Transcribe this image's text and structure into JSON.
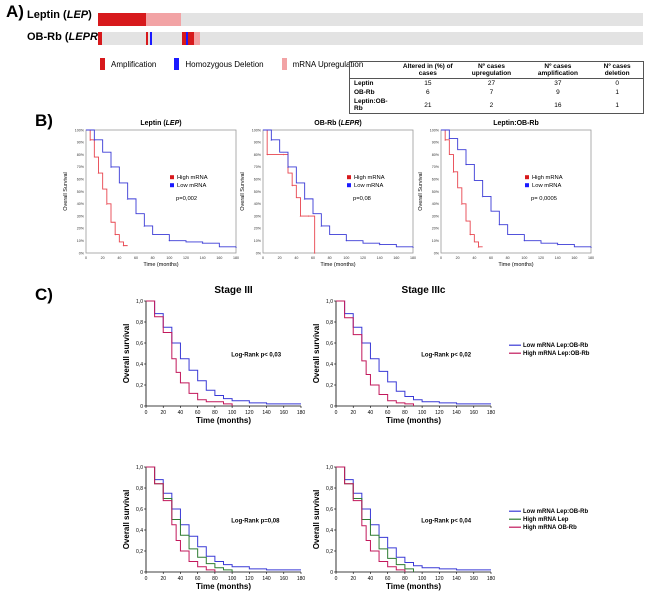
{
  "panel_labels": {
    "a": "A)",
    "b": "B)",
    "c": "C)"
  },
  "oncoprint": {
    "rows": [
      {
        "label_prefix": "Leptin (",
        "label_gene": "LEP",
        "label_suffix": ")"
      },
      {
        "label_prefix": "OB-Rb (",
        "label_gene": "LEPR",
        "label_suffix": ")"
      }
    ],
    "legend": [
      {
        "label": "Amplification",
        "color": "#d7191c"
      },
      {
        "label": "Homozygous Deletion",
        "color": "#1a1aff"
      },
      {
        "label": "mRNA Upregulation",
        "color": "#f2a3a5"
      }
    ],
    "table": {
      "headers": [
        "",
        "Altered in (%) of cases",
        "Nº cases upregulation",
        "Nº cases amplification",
        "Nº cases deletion"
      ],
      "rows": [
        [
          "Leptin",
          "15",
          "27",
          "37",
          "0"
        ],
        [
          "OB-Rb",
          "6",
          "7",
          "9",
          "1"
        ],
        [
          "Leptin:OB-Rb",
          "21",
          "2",
          "16",
          "1"
        ]
      ]
    }
  },
  "chart_data": [
    {
      "type": "line",
      "panel": "B",
      "title": "Leptin (LEP)",
      "xlabel": "Time (months)",
      "ylabel": "Overall Survival",
      "xlim": [
        0,
        180
      ],
      "ylim": [
        0,
        100
      ],
      "x_ticks": [
        0,
        20,
        40,
        60,
        80,
        100,
        120,
        140,
        160,
        180
      ],
      "y_ticks": [
        0,
        10,
        20,
        30,
        40,
        50,
        60,
        70,
        80,
        90,
        100
      ],
      "y_tick_labels": [
        "0%",
        "10%",
        "20%",
        "30%",
        "40%",
        "50%",
        "60%",
        "70%",
        "80%",
        "90%",
        "100%"
      ],
      "legend_position": "center-right",
      "annotation": "p=0,002",
      "series": [
        {
          "name": "High mRNA",
          "color": "#e8454f",
          "x": [
            0,
            5,
            10,
            15,
            20,
            25,
            30,
            35,
            40,
            45,
            50
          ],
          "y": [
            100,
            92,
            78,
            65,
            52,
            40,
            25,
            15,
            9,
            6,
            6
          ]
        },
        {
          "name": "Low mRNA",
          "color": "#3a3ad6",
          "x": [
            0,
            10,
            20,
            30,
            40,
            50,
            60,
            70,
            80,
            100,
            120,
            140,
            160,
            180
          ],
          "y": [
            100,
            92,
            82,
            70,
            57,
            44,
            32,
            22,
            15,
            10,
            9,
            8,
            5,
            5
          ]
        }
      ]
    },
    {
      "type": "line",
      "panel": "B",
      "title": "OB-Rb (LEPR)",
      "xlabel": "Time (months)",
      "ylabel": "Overall Survival",
      "xlim": [
        0,
        180
      ],
      "ylim": [
        0,
        100
      ],
      "x_ticks": [
        0,
        20,
        40,
        60,
        80,
        100,
        120,
        140,
        160,
        180
      ],
      "y_ticks": [
        0,
        10,
        20,
        30,
        40,
        50,
        60,
        70,
        80,
        90,
        100
      ],
      "y_tick_labels": [
        "0%",
        "10%",
        "20%",
        "30%",
        "40%",
        "50%",
        "60%",
        "70%",
        "80%",
        "90%",
        "100%"
      ],
      "legend_position": "center-right",
      "annotation": "p=0,08",
      "series": [
        {
          "name": "High mRNA",
          "color": "#e8454f",
          "x": [
            0,
            5,
            15,
            25,
            30,
            35,
            40,
            45,
            50,
            55,
            60,
            62
          ],
          "y": [
            100,
            80,
            80,
            80,
            65,
            55,
            45,
            30,
            30,
            30,
            30,
            0
          ]
        },
        {
          "name": "Low mRNA",
          "color": "#3a3ad6",
          "x": [
            0,
            10,
            20,
            30,
            40,
            50,
            60,
            70,
            80,
            100,
            120,
            140,
            160,
            180
          ],
          "y": [
            100,
            92,
            82,
            70,
            57,
            44,
            32,
            22,
            15,
            10,
            8,
            7,
            5,
            5
          ]
        }
      ]
    },
    {
      "type": "line",
      "panel": "B",
      "title": "Leptin:OB-Rb",
      "xlabel": "Time (months)",
      "ylabel": "Overall Survival",
      "xlim": [
        0,
        180
      ],
      "ylim": [
        0,
        100
      ],
      "x_ticks": [
        0,
        20,
        40,
        60,
        80,
        100,
        120,
        140,
        160,
        180
      ],
      "y_ticks": [
        0,
        10,
        20,
        30,
        40,
        50,
        60,
        70,
        80,
        90,
        100
      ],
      "y_tick_labels": [
        "0%",
        "10%",
        "20%",
        "30%",
        "40%",
        "50%",
        "60%",
        "70%",
        "80%",
        "90%",
        "100%"
      ],
      "legend_position": "center-right",
      "annotation": "p= 0,0005",
      "series": [
        {
          "name": "High mRNA",
          "color": "#e8454f",
          "x": [
            0,
            5,
            10,
            15,
            20,
            25,
            30,
            35,
            40,
            45,
            50
          ],
          "y": [
            100,
            92,
            80,
            66,
            53,
            40,
            26,
            15,
            9,
            5,
            5
          ]
        },
        {
          "name": "Low mRNA",
          "color": "#3a3ad6",
          "x": [
            0,
            10,
            20,
            30,
            40,
            50,
            60,
            70,
            80,
            100,
            120,
            140,
            160,
            180
          ],
          "y": [
            100,
            93,
            84,
            72,
            59,
            46,
            34,
            23,
            15,
            10,
            8,
            7,
            5,
            5
          ]
        }
      ]
    },
    {
      "type": "line",
      "panel": "C",
      "title": "Stage III",
      "xlabel": "Time (months)",
      "ylabel": "Overall survival",
      "xlim": [
        0,
        180
      ],
      "ylim": [
        0,
        1
      ],
      "x_ticks": [
        0,
        20,
        40,
        60,
        80,
        100,
        120,
        140,
        160,
        180
      ],
      "y_ticks": [
        0,
        0.2,
        0.4,
        0.6,
        0.8,
        1
      ],
      "y_tick_labels": [
        "0",
        "0,2",
        "0,4",
        "0,6",
        "0,8",
        "1,0"
      ],
      "annotation": "Log-Rank p< 0,03",
      "series": [
        {
          "name": "Low mRNA Lep:OB-Rb",
          "color": "#3a3ad6",
          "x": [
            0,
            10,
            20,
            30,
            40,
            50,
            60,
            70,
            80,
            90,
            100,
            120,
            140,
            160,
            180
          ],
          "y": [
            1.0,
            0.88,
            0.75,
            0.6,
            0.45,
            0.34,
            0.24,
            0.15,
            0.1,
            0.07,
            0.05,
            0.03,
            0.02,
            0.02,
            0.02
          ]
        },
        {
          "name": "High mRNA Lep:OB-Rb",
          "color": "#c2185b",
          "x": [
            0,
            10,
            20,
            30,
            35,
            40,
            50,
            60,
            70,
            80,
            90,
            100
          ],
          "y": [
            1.0,
            0.85,
            0.7,
            0.45,
            0.32,
            0.22,
            0.12,
            0.06,
            0.04,
            0.04,
            0.02,
            0.0
          ]
        }
      ]
    },
    {
      "type": "line",
      "panel": "C",
      "title": "Stage IIIc",
      "xlabel": "Time (months)",
      "ylabel": "Overall survival",
      "xlim": [
        0,
        180
      ],
      "ylim": [
        0,
        1
      ],
      "x_ticks": [
        0,
        20,
        40,
        60,
        80,
        100,
        120,
        140,
        160,
        180
      ],
      "y_ticks": [
        0,
        0.2,
        0.4,
        0.6,
        0.8,
        1
      ],
      "y_tick_labels": [
        "0",
        "0,2",
        "0,4",
        "0,6",
        "0,8",
        "1,0"
      ],
      "annotation": "Log-Rank p< 0,02",
      "legend_position": "right",
      "series": [
        {
          "name": "Low mRNA Lep:OB-Rb",
          "color": "#3a3ad6",
          "x": [
            0,
            10,
            20,
            30,
            40,
            50,
            60,
            70,
            80,
            90,
            100,
            120,
            140,
            160,
            180
          ],
          "y": [
            1.0,
            0.88,
            0.75,
            0.6,
            0.45,
            0.33,
            0.23,
            0.14,
            0.09,
            0.06,
            0.04,
            0.03,
            0.02,
            0.02,
            0.02
          ]
        },
        {
          "name": "High mRNA Lep:OB-Rb",
          "color": "#c2185b",
          "x": [
            0,
            10,
            20,
            30,
            35,
            40,
            50,
            60,
            70,
            80,
            90
          ],
          "y": [
            1.0,
            0.84,
            0.68,
            0.43,
            0.3,
            0.2,
            0.11,
            0.05,
            0.03,
            0.02,
            0.0
          ]
        }
      ]
    },
    {
      "type": "line",
      "panel": "C",
      "title": "",
      "xlabel": "Time (months)",
      "ylabel": "Overall survival",
      "xlim": [
        0,
        180
      ],
      "ylim": [
        0,
        1
      ],
      "x_ticks": [
        0,
        20,
        40,
        60,
        80,
        100,
        120,
        140,
        160,
        180
      ],
      "y_ticks": [
        0,
        0.2,
        0.4,
        0.6,
        0.8,
        1
      ],
      "y_tick_labels": [
        "0",
        "0,2",
        "0,4",
        "0,6",
        "0,8",
        "1,0"
      ],
      "annotation": "Log-Rank p=0,08",
      "series": [
        {
          "name": "Low mRNA Lep:OB-Rb",
          "color": "#3a3ad6",
          "x": [
            0,
            10,
            20,
            30,
            40,
            50,
            60,
            70,
            80,
            90,
            100,
            120,
            140,
            160,
            180
          ],
          "y": [
            1.0,
            0.88,
            0.75,
            0.6,
            0.45,
            0.34,
            0.24,
            0.15,
            0.1,
            0.07,
            0.05,
            0.03,
            0.02,
            0.02,
            0.02
          ]
        },
        {
          "name": "High mRNA Lep",
          "color": "#2e7d32",
          "x": [
            0,
            10,
            20,
            30,
            40,
            50,
            60,
            70,
            80,
            90,
            100
          ],
          "y": [
            1.0,
            0.84,
            0.7,
            0.5,
            0.35,
            0.22,
            0.14,
            0.08,
            0.04,
            0.02,
            0.0
          ]
        },
        {
          "name": "High mRNA OB-Rb",
          "color": "#c2185b",
          "x": [
            0,
            10,
            20,
            30,
            35,
            40,
            50,
            60,
            70,
            80
          ],
          "y": [
            1.0,
            0.84,
            0.68,
            0.45,
            0.3,
            0.2,
            0.1,
            0.05,
            0.02,
            0.0
          ]
        }
      ]
    },
    {
      "type": "line",
      "panel": "C",
      "title": "",
      "xlabel": "Time (months)",
      "ylabel": "Overall survival",
      "xlim": [
        0,
        180
      ],
      "ylim": [
        0,
        1
      ],
      "x_ticks": [
        0,
        20,
        40,
        60,
        80,
        100,
        120,
        140,
        160,
        180
      ],
      "y_ticks": [
        0,
        0.2,
        0.4,
        0.6,
        0.8,
        1
      ],
      "y_tick_labels": [
        "0",
        "0,2",
        "0,4",
        "0,6",
        "0,8",
        "1,0"
      ],
      "annotation": "Log-Rank p< 0,04",
      "legend_position": "right",
      "series": [
        {
          "name": "Low mRNA Lep:OB-Rb",
          "color": "#3a3ad6",
          "x": [
            0,
            10,
            20,
            30,
            40,
            50,
            60,
            70,
            80,
            90,
            100,
            120,
            140,
            160,
            180
          ],
          "y": [
            1.0,
            0.88,
            0.75,
            0.6,
            0.45,
            0.33,
            0.23,
            0.14,
            0.09,
            0.06,
            0.04,
            0.03,
            0.02,
            0.02,
            0.02
          ]
        },
        {
          "name": "High mRNA Lep",
          "color": "#2e7d32",
          "x": [
            0,
            10,
            20,
            30,
            40,
            50,
            60,
            70,
            80,
            90
          ],
          "y": [
            1.0,
            0.84,
            0.7,
            0.5,
            0.35,
            0.22,
            0.13,
            0.07,
            0.03,
            0.0
          ]
        },
        {
          "name": "High mRNA OB-Rb",
          "color": "#c2185b",
          "x": [
            0,
            10,
            20,
            30,
            35,
            40,
            50,
            60,
            70,
            80
          ],
          "y": [
            1.0,
            0.84,
            0.68,
            0.44,
            0.3,
            0.2,
            0.1,
            0.05,
            0.02,
            0.0
          ]
        }
      ]
    }
  ]
}
